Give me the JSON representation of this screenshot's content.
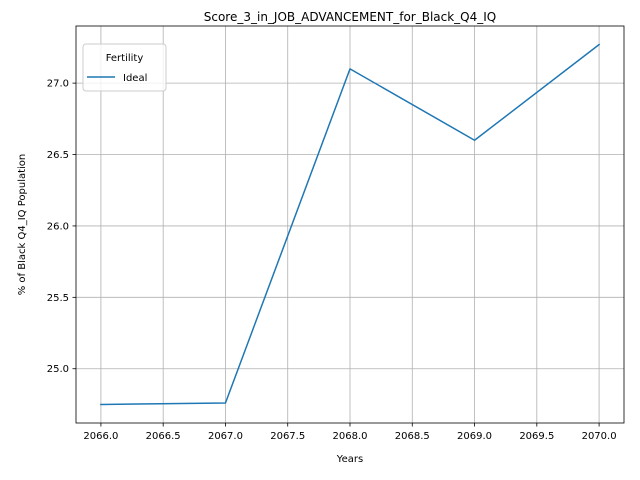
{
  "chart_data": {
    "type": "line",
    "title": "Score_3_in_JOB_ADVANCEMENT_for_Black_Q4_IQ",
    "xlabel": "Years",
    "ylabel": "% of Black Q4_IQ Population",
    "x": [
      2066,
      2067,
      2068,
      2069,
      2070
    ],
    "series": [
      {
        "name": "Ideal",
        "values": [
          24.75,
          24.76,
          27.1,
          26.6,
          27.27
        ],
        "color": "#1f77b4"
      }
    ],
    "xlim": [
      2065.8,
      2070.2
    ],
    "ylim": [
      24.62,
      27.4
    ],
    "xticks": [
      2066.0,
      2066.5,
      2067.0,
      2067.5,
      2068.0,
      2068.5,
      2069.0,
      2069.5,
      2070.0
    ],
    "xtick_labels": [
      "2066.0",
      "2066.5",
      "2067.0",
      "2067.5",
      "2068.0",
      "2068.5",
      "2069.0",
      "2069.5",
      "2070.0"
    ],
    "yticks": [
      25.0,
      25.5,
      26.0,
      26.5,
      27.0
    ],
    "ytick_labels": [
      "25.0",
      "25.5",
      "26.0",
      "26.5",
      "27.0"
    ],
    "grid": true,
    "legend": {
      "title": "Fertility",
      "position": "upper-left"
    }
  }
}
